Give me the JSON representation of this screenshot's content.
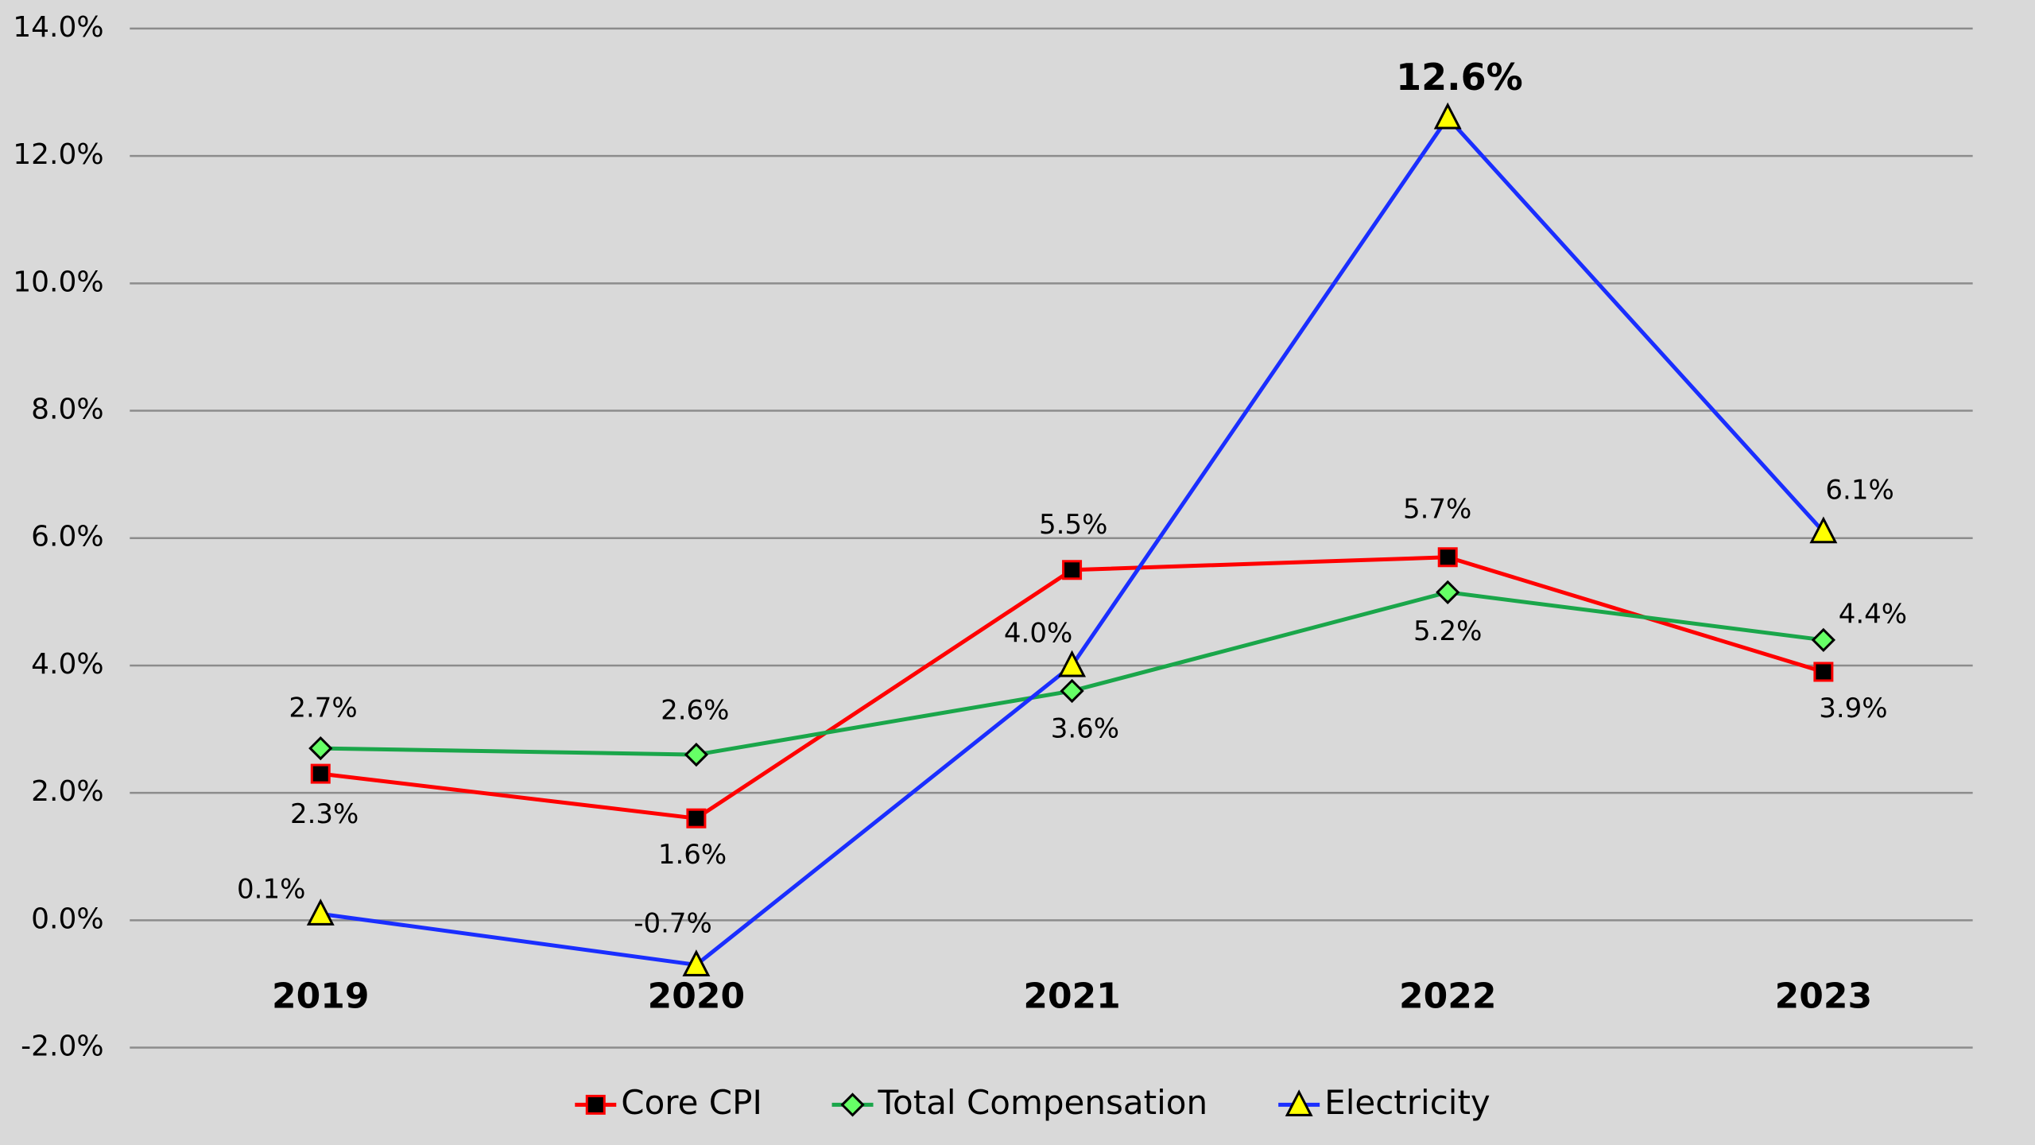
{
  "chart_data": {
    "type": "line",
    "categories": [
      "2019",
      "2020",
      "2021",
      "2022",
      "2023"
    ],
    "series": [
      {
        "name": "Core CPI",
        "color": "#ff0000",
        "marker": "square",
        "marker_color": "#000000",
        "values": [
          2.3,
          1.6,
          5.5,
          5.7,
          3.9
        ],
        "value_labels": [
          "2.3%",
          "1.6%",
          "5.5%",
          "5.7%",
          "3.9%"
        ]
      },
      {
        "name": "Total Compensation",
        "color": "#1aa64a",
        "marker": "diamond",
        "marker_color": "#66ff66",
        "values": [
          2.7,
          2.6,
          3.6,
          5.15,
          4.4
        ],
        "value_labels": [
          "2.7%",
          "2.6%",
          "3.6%",
          "5.2%",
          "4.4%"
        ]
      },
      {
        "name": "Electricity",
        "color": "#1a2eff",
        "marker": "triangle",
        "marker_color": "#ffff00",
        "values": [
          0.1,
          -0.7,
          4.0,
          12.6,
          6.1
        ],
        "value_labels": [
          "0.1%",
          "-0.7%",
          "4.0%",
          "12.6%",
          "6.1%"
        ]
      }
    ],
    "ylim": [
      -2,
      14
    ],
    "yticks": [
      {
        "value": -2,
        "label": "-2.0%"
      },
      {
        "value": 0,
        "label": "0.0%"
      },
      {
        "value": 2,
        "label": "2.0%"
      },
      {
        "value": 4,
        "label": "4.0%"
      },
      {
        "value": 6,
        "label": "6.0%"
      },
      {
        "value": 8,
        "label": "8.0%"
      },
      {
        "value": 10,
        "label": "10.0%"
      },
      {
        "value": 12,
        "label": "12.0%"
      },
      {
        "value": 14,
        "label": "14.0%"
      }
    ],
    "grid": true,
    "legend": "bottom"
  }
}
